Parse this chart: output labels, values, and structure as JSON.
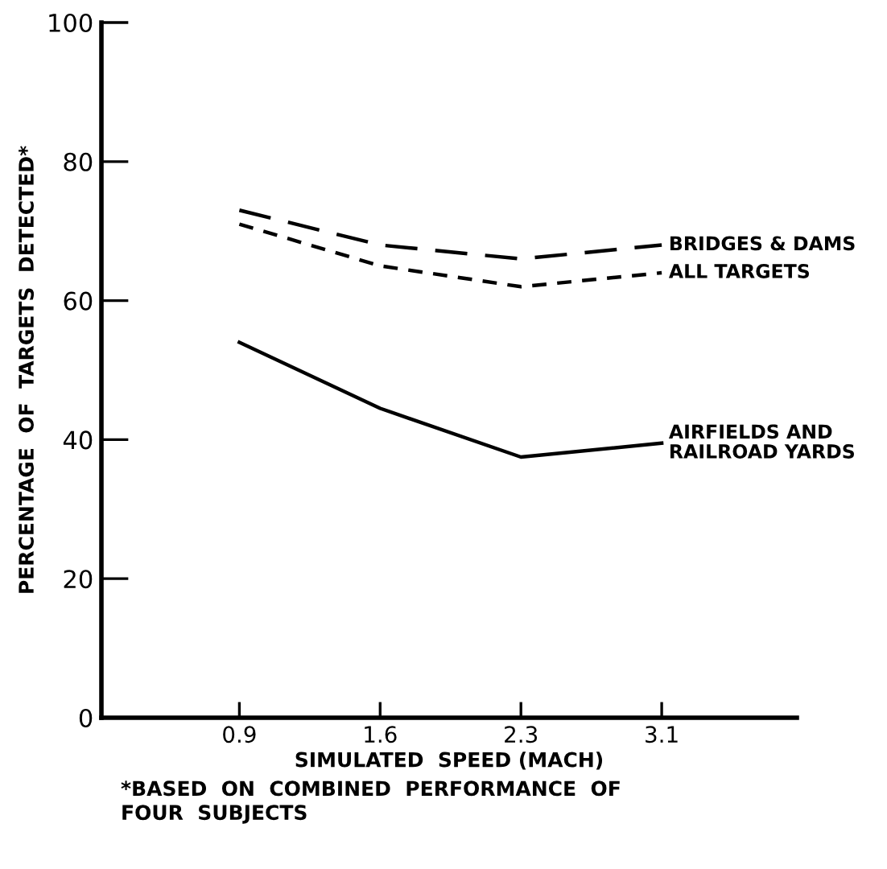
{
  "chart_data": {
    "type": "line",
    "xlabel": "SIMULATED  SPEED (MACH)",
    "ylabel": "PERCENTAGE  OF  TARGETS  DETECTED*",
    "categories": [
      "0.9",
      "1.6",
      "2.3",
      "3.1"
    ],
    "series": [
      {
        "name": "BRIDGES & DAMS",
        "color": "#000000",
        "line_style": "dashed",
        "values": [
          73,
          68,
          66,
          68
        ]
      },
      {
        "name": "ALL TARGETS",
        "color": "#000000",
        "line_style": "dotted",
        "values": [
          71,
          65,
          62,
          64
        ]
      },
      {
        "name": "AIRFIELDS AND\nRAILROAD YARDS",
        "color": "#000000",
        "line_style": "solid",
        "values": [
          54,
          44.5,
          37.5,
          39.5
        ]
      }
    ],
    "ylim": [
      0,
      100
    ],
    "yticks": [
      0,
      20,
      40,
      60,
      80,
      100
    ],
    "grid": false,
    "legend": false,
    "annotations": [
      "*BASED  ON  COMBINED  PERFORMANCE  OF\nFOUR  SUBJECTS"
    ]
  }
}
